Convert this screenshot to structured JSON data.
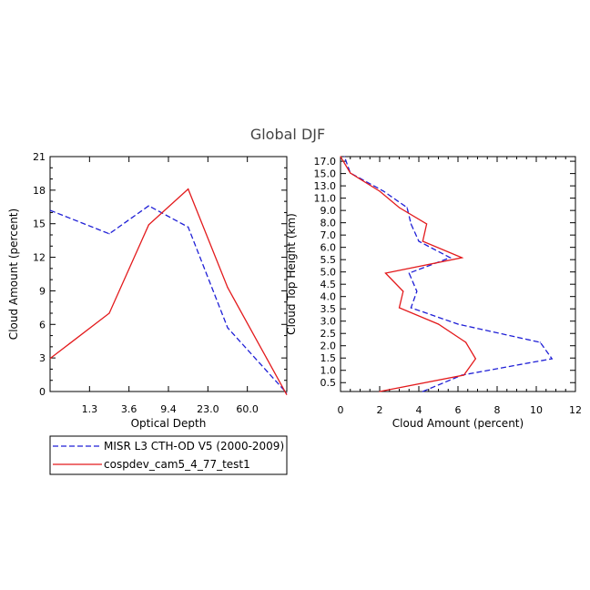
{
  "figure": {
    "title": "Global DJF"
  },
  "colors": {
    "series1": "#1f1fd6",
    "series2": "#e31a1c",
    "axis": "#000000"
  },
  "chart_data": [
    {
      "type": "line",
      "xlabel": "Optical Depth",
      "ylabel": "Cloud Amount (percent)",
      "xticks": [
        "1.3",
        "3.6",
        "9.4",
        "23.0",
        "60.0"
      ],
      "yticks": [
        "0",
        "3",
        "6",
        "9",
        "12",
        "15",
        "18",
        "21"
      ],
      "ylim": [
        0,
        21
      ],
      "x_bins": [
        0,
        1,
        2,
        3,
        4,
        5,
        6
      ],
      "series": [
        {
          "name": "MISR L3 CTH-OD V5 (2000-2009)",
          "style": "dashed",
          "values": [
            15.5,
            14.1,
            16.6,
            14.7,
            5.7,
            1.8
          ]
        },
        {
          "name": "cospdev_cam5_4_77_test1",
          "style": "solid",
          "values": [
            4.3,
            7.0,
            14.9,
            18.1,
            9.3,
            2.9
          ]
        }
      ]
    },
    {
      "type": "line",
      "xlabel": "Cloud Amount (percent)",
      "ylabel": "Cloud Top Height (km)",
      "xticks": [
        "0",
        "2",
        "4",
        "6",
        "8",
        "10",
        "12"
      ],
      "xlim": [
        0,
        12
      ],
      "yticks": [
        "0.5",
        "1.0",
        "1.5",
        "2.0",
        "2.5",
        "3.0",
        "3.5",
        "4.0",
        "4.5",
        "5.0",
        "5.5",
        "6.0",
        "7.0",
        "8.0",
        "9.0",
        "11.0",
        "13.0",
        "15.0",
        "17.0"
      ],
      "series": [
        {
          "name": "MISR L3 CTH-OD V5 (2000-2009)",
          "style": "dashed",
          "values": [
            4.2,
            6.2,
            10.8,
            10.2,
            6.0,
            3.6,
            3.9,
            3.5,
            5.6,
            4.0,
            3.6,
            3.4,
            2.2,
            0.5,
            0.2
          ]
        },
        {
          "name": "cospdev_cam5_4_77_test1",
          "style": "solid",
          "values": [
            2.0,
            6.3,
            6.9,
            6.4,
            5.0,
            3.0,
            3.2,
            2.3,
            6.2,
            4.2,
            4.4,
            3.0,
            2.0,
            0.5,
            0.0
          ]
        }
      ]
    }
  ],
  "legend": {
    "items": [
      {
        "label": "MISR L3 CTH-OD V5 (2000-2009)",
        "style": "dashed",
        "color": "#1f1fd6"
      },
      {
        "label": "cospdev_cam5_4_77_test1",
        "style": "solid",
        "color": "#e31a1c"
      }
    ]
  }
}
